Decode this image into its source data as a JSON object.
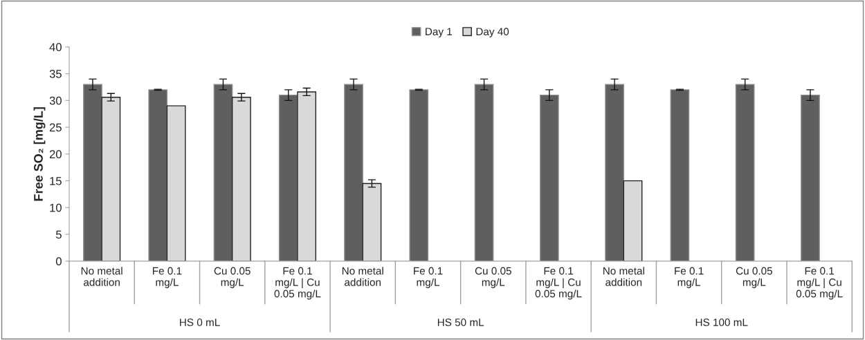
{
  "chart_data": {
    "type": "bar",
    "ylabel": "Free SO₂ [mg/L]",
    "categories": [
      "No metal\naddition",
      "Fe 0.1\nmg/L",
      "Cu 0.05\nmg/L",
      "Fe 0.1\nmg/L | Cu\n0.05 mg/L",
      "No metal\naddition",
      "Fe 0.1\nmg/L",
      "Cu 0.05\nmg/L",
      "Fe 0.1\nmg/L | Cu\n0.05 mg/L",
      "No metal\naddition",
      "Fe 0.1\nmg/L",
      "Cu 0.05\nmg/L",
      "Fe 0.1\nmg/L | Cu\n0.05 mg/L"
    ],
    "annotations": [
      "HS 0 mL",
      "HS 50 mL",
      "HS 100 mL"
    ],
    "series": [
      {
        "name": "Day 1",
        "color": "#5f5f5f",
        "values": [
          33,
          32,
          33,
          31,
          33,
          32,
          33,
          31,
          33,
          32,
          33,
          31
        ],
        "errors": [
          1,
          0.1,
          1,
          1,
          1,
          0.1,
          1,
          1,
          1,
          0.1,
          1,
          1
        ]
      },
      {
        "name": "Day 40",
        "color": "#d9d9d9",
        "values": [
          30.6,
          29,
          30.6,
          31.6,
          14.5,
          null,
          null,
          null,
          15,
          null,
          null,
          null
        ],
        "errors": [
          0.7,
          null,
          0.7,
          0.7,
          0.7,
          null,
          null,
          null,
          null,
          null,
          null,
          null
        ]
      }
    ],
    "ylim": [
      0,
      40
    ],
    "yticks": [
      0,
      5,
      10,
      15,
      20,
      25,
      30,
      35,
      40
    ],
    "legend": "top"
  }
}
